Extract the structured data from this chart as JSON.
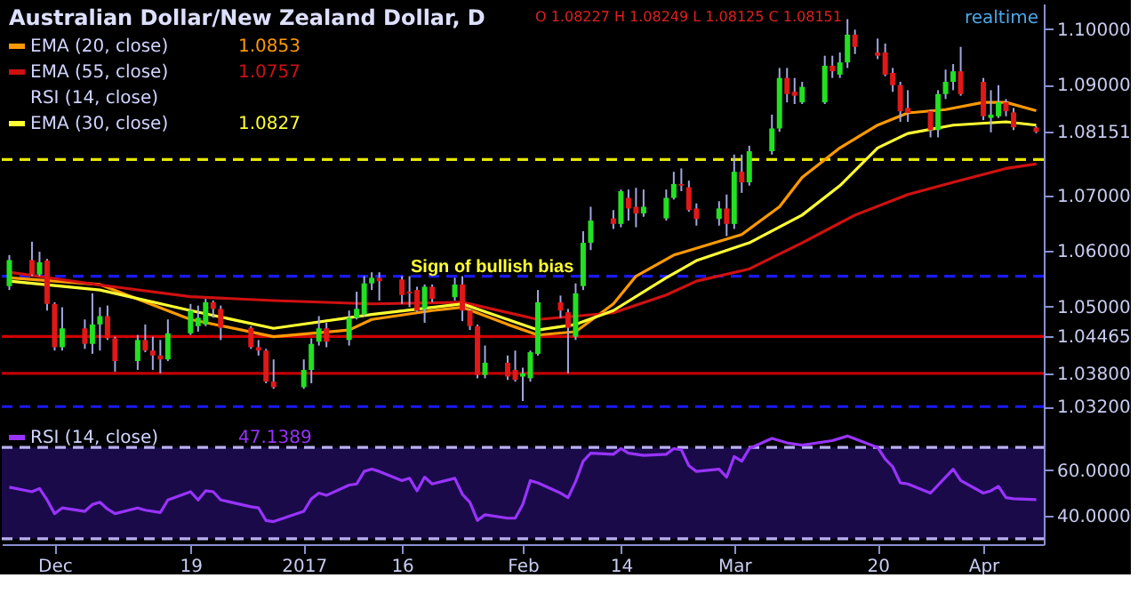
{
  "chart_data": [
    {
      "type": "candlestick",
      "title": "Australian Dollar/New Zealand Dollar, D",
      "legend": "top left",
      "tick_labels": "y",
      "annotations": [
        "O 1.08227 H 1.08249 L 1.08125 C 1.08151",
        "RSI (14, close)",
        "realtime",
        "1.0853",
        "1.0757",
        "1.0827",
        "Sign of bullish bias"
      ],
      "xlim": [
        "2016-11-24",
        "2017-04-11"
      ],
      "x": [
        "2016-11-25",
        "2016-11-28",
        "2016-11-29",
        "2016-11-30",
        "2016-12-01",
        "2016-12-02",
        "2016-12-05",
        "2016-12-06",
        "2016-12-07",
        "2016-12-08",
        "2016-12-09",
        "2016-12-12",
        "2016-12-13",
        "2016-12-14",
        "2016-12-15",
        "2016-12-16",
        "2016-12-19",
        "2016-12-20",
        "2016-12-21",
        "2016-12-22",
        "2016-12-23",
        "2016-12-27",
        "2016-12-28",
        "2016-12-29",
        "2016-12-30",
        "2017-01-03",
        "2017-01-04",
        "2017-01-05",
        "2017-01-06",
        "2017-01-09",
        "2017-01-10",
        "2017-01-11",
        "2017-01-12",
        "2017-01-13",
        "2017-01-16",
        "2017-01-17",
        "2017-01-18",
        "2017-01-19",
        "2017-01-20",
        "2017-01-23",
        "2017-01-24",
        "2017-01-25",
        "2017-01-26",
        "2017-01-27",
        "2017-01-30",
        "2017-01-31",
        "2017-02-01",
        "2017-02-02",
        "2017-02-03",
        "2017-02-06",
        "2017-02-07",
        "2017-02-08",
        "2017-02-09",
        "2017-02-10",
        "2017-02-13",
        "2017-02-14",
        "2017-02-15",
        "2017-02-16",
        "2017-02-17",
        "2017-02-20",
        "2017-02-21",
        "2017-02-22",
        "2017-02-23",
        "2017-02-24",
        "2017-02-27",
        "2017-02-28",
        "2017-03-01",
        "2017-03-02",
        "2017-03-03",
        "2017-03-06",
        "2017-03-07",
        "2017-03-08",
        "2017-03-09",
        "2017-03-10",
        "2017-03-13",
        "2017-03-14",
        "2017-03-15",
        "2017-03-16",
        "2017-03-17",
        "2017-03-20",
        "2017-03-21",
        "2017-03-22",
        "2017-03-23",
        "2017-03-24",
        "2017-03-27",
        "2017-03-28",
        "2017-03-29",
        "2017-03-30",
        "2017-03-31",
        "2017-04-03",
        "2017-04-04",
        "2017-04-05",
        "2017-04-06",
        "2017-04-07",
        "2017-04-10"
      ],
      "ohlc": [
        [
          1.0537,
          1.0593,
          1.053,
          1.0584
        ],
        [
          1.0584,
          1.0617,
          1.0555,
          1.0558
        ],
        [
          1.0558,
          1.0599,
          1.0555,
          1.058
        ],
        [
          1.0583,
          1.0586,
          1.0493,
          1.0505
        ],
        [
          1.0505,
          1.0508,
          1.0421,
          1.0427
        ],
        [
          1.0427,
          1.0499,
          1.0421,
          1.0461
        ],
        [
          1.0461,
          1.0477,
          1.0424,
          1.0433
        ],
        [
          1.0433,
          1.0524,
          1.0415,
          1.0468
        ],
        [
          1.0468,
          1.0499,
          1.0421,
          1.0483
        ],
        [
          1.0483,
          1.0502,
          1.044,
          1.0443
        ],
        [
          1.0443,
          1.0446,
          1.0383,
          1.0402
        ],
        [
          1.0402,
          1.0449,
          1.0386,
          1.044
        ],
        [
          1.044,
          1.0468,
          1.0418,
          1.0421
        ],
        [
          1.0421,
          1.0446,
          1.0386,
          1.0412
        ],
        [
          1.0412,
          1.044,
          1.038,
          1.0405
        ],
        [
          1.0405,
          1.0477,
          1.0402,
          1.0452
        ],
        [
          1.0452,
          1.0505,
          1.0449,
          1.0493
        ],
        [
          1.0465,
          1.0502,
          1.0455,
          1.048
        ],
        [
          1.0468,
          1.0514,
          1.0465,
          1.0508
        ],
        [
          1.0508,
          1.0511,
          1.048,
          1.0496
        ],
        [
          1.0496,
          1.0502,
          1.044,
          1.0462
        ],
        [
          1.0462,
          1.0465,
          1.0424,
          1.0427
        ],
        [
          1.0427,
          1.044,
          1.0412,
          1.0421
        ],
        [
          1.0421,
          1.0424,
          1.0362,
          1.0365
        ],
        [
          1.0365,
          1.0405,
          1.0352,
          1.0355
        ],
        [
          1.0355,
          1.0405,
          1.0352,
          1.0386
        ],
        [
          1.0386,
          1.0443,
          1.0362,
          1.0433
        ],
        [
          1.0437,
          1.0483,
          1.043,
          1.0461
        ],
        [
          1.0461,
          1.0471,
          1.0427,
          1.0437
        ],
        [
          1.044,
          1.0493,
          1.043,
          1.048
        ],
        [
          1.048,
          1.0527,
          1.0477,
          1.0496
        ],
        [
          1.0486,
          1.0555,
          1.0483,
          1.0542
        ],
        [
          1.0542,
          1.0562,
          1.053,
          1.0552
        ],
        [
          1.0552,
          1.0562,
          1.0511,
          1.0546
        ],
        [
          1.0549,
          1.0555,
          1.0505,
          1.0521
        ],
        [
          1.0527,
          1.0555,
          1.0499,
          1.0524
        ],
        [
          1.053,
          1.0536,
          1.049,
          1.0493
        ],
        [
          1.0496,
          1.054,
          1.0471,
          1.0536
        ],
        [
          1.0536,
          1.054,
          1.0508,
          1.0514
        ],
        [
          1.0517,
          1.0552,
          1.0511,
          1.054
        ],
        [
          1.054,
          1.0555,
          1.0474,
          1.0493
        ],
        [
          1.0493,
          1.0496,
          1.0458,
          1.0465
        ],
        [
          1.0465,
          1.0468,
          1.0371,
          1.0377
        ],
        [
          1.0377,
          1.043,
          1.0371,
          1.0399
        ],
        [
          1.0399,
          1.0412,
          1.0368,
          1.0374
        ],
        [
          1.0386,
          1.0421,
          1.0365,
          1.0368
        ],
        [
          1.0374,
          1.039,
          1.033,
          1.038
        ],
        [
          1.0371,
          1.0421,
          1.0365,
          1.0418
        ],
        [
          1.0415,
          1.053,
          1.0412,
          1.0508
        ],
        [
          1.0508,
          1.052,
          1.048,
          1.0493
        ],
        [
          1.049,
          1.0496,
          1.038,
          1.0462
        ],
        [
          1.0446,
          1.0542,
          1.044,
          1.0524
        ],
        [
          1.0537,
          1.0636,
          1.053,
          1.0615
        ],
        [
          1.0615,
          1.068,
          1.0602,
          1.0655
        ],
        [
          1.0659,
          1.0674,
          1.064,
          1.0649
        ],
        [
          1.0649,
          1.0711,
          1.0643,
          1.0708
        ],
        [
          1.0696,
          1.0711,
          1.0655,
          1.0677
        ],
        [
          1.068,
          1.0714,
          1.0643,
          1.0668
        ],
        [
          1.0668,
          1.0711,
          1.0662,
          1.068
        ],
        [
          1.0659,
          1.0711,
          1.0655,
          1.0696
        ],
        [
          1.0696,
          1.0743,
          1.0693,
          1.0721
        ],
        [
          1.0721,
          1.0749,
          1.0708,
          1.0718
        ],
        [
          1.0715,
          1.0727,
          1.0671,
          1.0674
        ],
        [
          1.0677,
          1.0686,
          1.0646,
          1.0658
        ],
        [
          1.0658,
          1.069,
          1.0646,
          1.0677
        ],
        [
          1.0677,
          1.0702,
          1.0627,
          1.0649
        ],
        [
          1.0649,
          1.0774,
          1.064,
          1.0743
        ],
        [
          1.0743,
          1.0774,
          1.0705,
          1.0724
        ],
        [
          1.0724,
          1.079,
          1.0718,
          1.078
        ],
        [
          1.078,
          1.0846,
          1.0774,
          1.0821
        ],
        [
          1.0821,
          1.093,
          1.0815,
          1.0912
        ],
        [
          1.0912,
          1.093,
          1.0868,
          1.0883
        ],
        [
          1.0887,
          1.0912,
          1.0865,
          1.088
        ],
        [
          1.0868,
          1.0905,
          1.0865,
          1.0896
        ],
        [
          1.0868,
          1.0952,
          1.0865,
          1.0934
        ],
        [
          1.0934,
          1.0952,
          1.0912,
          1.0924
        ],
        [
          1.0918,
          1.0958,
          1.0912,
          1.094
        ],
        [
          1.094,
          1.1018,
          1.093,
          1.099
        ],
        [
          1.099,
          1.0999,
          1.0955,
          1.0968
        ],
        [
          1.0958,
          1.0983,
          1.0946,
          1.0952
        ],
        [
          1.0958,
          1.0974,
          1.0915,
          1.0918
        ],
        [
          1.0921,
          1.093,
          1.0887,
          1.0899
        ],
        [
          1.0899,
          1.0905,
          1.0833,
          1.0852
        ],
        [
          1.0858,
          1.089,
          1.0833,
          1.0849
        ],
        [
          1.0852,
          1.0855,
          1.0805,
          1.0818
        ],
        [
          1.0818,
          1.089,
          1.0805,
          1.0883
        ],
        [
          1.0883,
          1.0927,
          1.0874,
          1.0905
        ],
        [
          1.0905,
          1.0937,
          1.089,
          1.0924
        ],
        [
          1.0924,
          1.0968,
          1.088,
          1.0883
        ],
        [
          1.0905,
          1.0912,
          1.0836,
          1.0843
        ],
        [
          1.084,
          1.089,
          1.0814,
          1.0846
        ],
        [
          1.0843,
          1.0899,
          1.084,
          1.0868
        ],
        [
          1.0868,
          1.0874,
          1.0843,
          1.0852
        ],
        [
          1.085,
          1.0858,
          1.0818,
          1.0823
        ],
        [
          1.08227,
          1.08249,
          1.08125,
          1.08151
        ]
      ],
      "series": [
        {
          "name": "EMA (20, close)",
          "type": "line",
          "color": "#ff9900",
          "x": [
            "2016-11-25",
            "2016-12-07",
            "2016-12-19",
            "2016-12-30",
            "2017-01-09",
            "2017-01-12",
            "2017-01-20",
            "2017-01-24",
            "2017-01-30",
            "2017-02-03",
            "2017-02-08",
            "2017-02-13",
            "2017-02-16",
            "2017-02-21",
            "2017-03-02",
            "2017-03-07",
            "2017-03-10",
            "2017-03-15",
            "2017-03-20",
            "2017-03-24",
            "2017-03-29",
            "2017-04-03",
            "2017-04-06",
            "2017-04-10"
          ],
          "values": [
            1.0552,
            1.054,
            1.0477,
            1.0446,
            1.0458,
            1.0477,
            1.0493,
            1.0499,
            1.0468,
            1.0449,
            1.0455,
            1.0505,
            1.0555,
            1.0593,
            1.063,
            1.068,
            1.0733,
            1.0786,
            1.0827,
            1.0849,
            1.0855,
            1.0868,
            1.0868,
            1.0853
          ]
        },
        {
          "name": "EMA (55, close)",
          "type": "line",
          "color": "#d01010",
          "x": [
            "2016-11-25",
            "2016-12-07",
            "2016-12-19",
            "2016-12-30",
            "2017-01-12",
            "2017-01-24",
            "2017-02-03",
            "2017-02-13",
            "2017-02-20",
            "2017-02-24",
            "2017-03-03",
            "2017-03-10",
            "2017-03-17",
            "2017-03-24",
            "2017-03-30",
            "2017-04-06",
            "2017-04-10"
          ],
          "values": [
            1.0562,
            1.0539,
            1.0518,
            1.0511,
            1.0505,
            1.0508,
            1.0477,
            1.0489,
            1.0521,
            1.0546,
            1.0568,
            1.0615,
            1.0665,
            1.0702,
            1.0724,
            1.0749,
            1.0757
          ]
        },
        {
          "name": "EMA (30, close)",
          "type": "line",
          "color": "#ffff33",
          "x": [
            "2016-11-25",
            "2016-12-07",
            "2016-12-19",
            "2016-12-30",
            "2017-01-12",
            "2017-01-24",
            "2017-02-03",
            "2017-02-08",
            "2017-02-13",
            "2017-02-20",
            "2017-02-24",
            "2017-03-03",
            "2017-03-10",
            "2017-03-15",
            "2017-03-20",
            "2017-03-24",
            "2017-03-30",
            "2017-04-06",
            "2017-04-10"
          ],
          "values": [
            1.0546,
            1.053,
            1.0493,
            1.0461,
            1.0486,
            1.0505,
            1.0458,
            1.0468,
            1.0493,
            1.0552,
            1.0583,
            1.0615,
            1.0665,
            1.0718,
            1.0786,
            1.0812,
            1.0827,
            1.0833,
            1.0827
          ]
        }
      ],
      "ylim": [
        1.029,
        1.1046
      ],
      "yticks": [
        {
          "value": 1.1,
          "label": "1.10000"
        },
        {
          "value": 1.09,
          "label": "1.09000"
        },
        {
          "value": 1.08151,
          "label": "1.08151"
        },
        {
          "value": 1.07,
          "label": "1.07000"
        },
        {
          "value": 1.06,
          "label": "1.06000"
        },
        {
          "value": 1.05,
          "label": "1.05000"
        },
        {
          "value": 1.04465,
          "label": "1.04465"
        },
        {
          "value": 1.038,
          "label": "1.03800"
        },
        {
          "value": 1.032,
          "label": "1.03200"
        }
      ],
      "ref_lines": [
        {
          "axis": "y",
          "value": 1.0765,
          "color": "#e6e600",
          "line_style": "dashed"
        },
        {
          "axis": "y",
          "value": 1.0555,
          "color": "#1a1aff",
          "line_style": "dashed"
        },
        {
          "axis": "y",
          "value": 1.04465,
          "color": "#d00000",
          "line_style": "solid"
        },
        {
          "axis": "y",
          "value": 1.038,
          "color": "#c00000",
          "line_style": "solid"
        },
        {
          "axis": "y",
          "value": 1.032,
          "color": "#1a1aff",
          "line_style": "dashed"
        }
      ]
    },
    {
      "type": "line",
      "legend": "top left",
      "annotations": [
        "47.1389"
      ],
      "xlim": [
        "2016-11-24",
        "2017-04-11"
      ],
      "series": [
        {
          "name": "RSI (14, close)",
          "color": "#9933ff",
          "x": [
            "2016-11-25",
            "2016-11-28",
            "2016-11-29",
            "2016-11-30",
            "2016-12-01",
            "2016-12-02",
            "2016-12-05",
            "2016-12-06",
            "2016-12-07",
            "2016-12-08",
            "2016-12-09",
            "2016-12-12",
            "2016-12-13",
            "2016-12-15",
            "2016-12-16",
            "2016-12-19",
            "2016-12-20",
            "2016-12-21",
            "2016-12-22",
            "2016-12-23",
            "2016-12-27",
            "2016-12-28",
            "2016-12-29",
            "2016-12-30",
            "2017-01-03",
            "2017-01-04",
            "2017-01-05",
            "2017-01-06",
            "2017-01-09",
            "2017-01-10",
            "2017-01-11",
            "2017-01-12",
            "2017-01-13",
            "2017-01-16",
            "2017-01-17",
            "2017-01-18",
            "2017-01-19",
            "2017-01-20",
            "2017-01-23",
            "2017-01-24",
            "2017-01-25",
            "2017-01-26",
            "2017-01-27",
            "2017-01-30",
            "2017-01-31",
            "2017-02-01",
            "2017-02-02",
            "2017-02-03",
            "2017-02-06",
            "2017-02-07",
            "2017-02-08",
            "2017-02-09",
            "2017-02-10",
            "2017-02-13",
            "2017-02-14",
            "2017-02-15",
            "2017-02-17",
            "2017-02-20",
            "2017-02-21",
            "2017-02-22",
            "2017-02-23",
            "2017-02-24",
            "2017-02-27",
            "2017-02-28",
            "2017-03-01",
            "2017-03-02",
            "2017-03-03",
            "2017-03-06",
            "2017-03-08",
            "2017-03-10",
            "2017-03-14",
            "2017-03-16",
            "2017-03-20",
            "2017-03-21",
            "2017-03-22",
            "2017-03-23",
            "2017-03-24",
            "2017-03-27",
            "2017-03-29",
            "2017-03-30",
            "2017-03-31",
            "2017-04-03",
            "2017-04-04",
            "2017-04-05",
            "2017-04-06",
            "2017-04-07",
            "2017-04-10"
          ],
          "values": [
            52.6,
            50.6,
            52,
            47,
            41,
            43.5,
            42,
            45,
            46,
            43,
            41,
            43.5,
            42.5,
            41.5,
            47,
            50.6,
            47,
            51,
            50.6,
            47,
            44,
            43.5,
            38,
            37.5,
            42,
            47.5,
            50,
            49,
            53.5,
            54,
            59.5,
            60.5,
            59.5,
            55.5,
            56.5,
            51,
            57,
            54,
            56.5,
            49.5,
            46,
            38,
            40.5,
            39,
            39,
            45,
            55.5,
            54.5,
            50,
            48,
            55,
            64,
            67.5,
            67,
            69.5,
            67.5,
            66.5,
            67,
            69.5,
            69,
            62,
            59.5,
            60.5,
            57,
            66,
            64,
            69.5,
            74,
            72,
            71,
            73,
            75,
            70,
            65,
            61.5,
            54.5,
            54,
            50,
            57,
            60.5,
            55.5,
            50,
            51,
            53,
            48,
            47.5,
            47.1
          ]
        }
      ],
      "ylim": [
        27.6,
        80.6
      ],
      "yticks": [
        {
          "value": 60,
          "label": "60.0000"
        },
        {
          "value": 40,
          "label": "40.0000"
        }
      ],
      "xticks": [
        {
          "value": "2016-12-01",
          "label": "Dec"
        },
        {
          "value": "2016-12-19",
          "label": "19"
        },
        {
          "value": "2017-01-03",
          "label": "2017"
        },
        {
          "value": "2017-01-16",
          "label": "16"
        },
        {
          "value": "2017-02-01",
          "label": "Feb"
        },
        {
          "value": "2017-02-14",
          "label": "14"
        },
        {
          "value": "2017-03-01",
          "label": "Mar"
        },
        {
          "value": "2017-03-20",
          "label": "20"
        },
        {
          "value": "2017-04-03",
          "label": "Apr"
        }
      ],
      "bands": [
        {
          "axis": "y",
          "from": 30,
          "to": 70,
          "color": "#1a0a4a"
        }
      ],
      "ref_lines": [
        {
          "axis": "y",
          "value": 70,
          "color": "#b8b0f0",
          "line_style": "dashed"
        },
        {
          "axis": "y",
          "value": 30,
          "color": "#b8b0f0",
          "line_style": "dashed"
        }
      ]
    }
  ]
}
